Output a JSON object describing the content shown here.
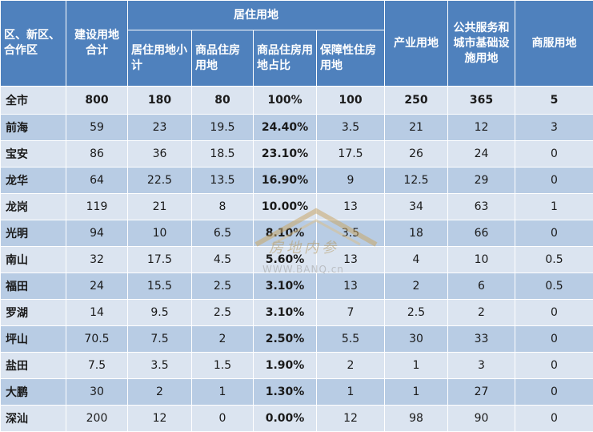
{
  "header": {
    "district": "区、新区、合作区",
    "total_land": "建设用地合计",
    "residential_group": "居住用地",
    "res_subtotal": "居住用地小计",
    "commercial_housing": "商品住房用地",
    "commercial_share": "商品住房用地占比",
    "affordable_housing": "保障性住房用地",
    "industrial": "产业用地",
    "public_service": "公共服务和城市基础设施用地",
    "commercial_office": "商服用地"
  },
  "rows": [
    {
      "name": "全市",
      "total": "800",
      "res": "180",
      "comm": "80",
      "share": "100%",
      "afford": "100",
      "ind": "250",
      "pub": "365",
      "biz": "5"
    },
    {
      "name": "前海",
      "total": "59",
      "res": "23",
      "comm": "19.5",
      "share": "24.40%",
      "afford": "3.5",
      "ind": "21",
      "pub": "12",
      "biz": "3"
    },
    {
      "name": "宝安",
      "total": "86",
      "res": "36",
      "comm": "18.5",
      "share": "23.10%",
      "afford": "17.5",
      "ind": "26",
      "pub": "24",
      "biz": "0"
    },
    {
      "name": "龙华",
      "total": "64",
      "res": "22.5",
      "comm": "13.5",
      "share": "16.90%",
      "afford": "9",
      "ind": "12.5",
      "pub": "29",
      "biz": "0"
    },
    {
      "name": "龙岗",
      "total": "119",
      "res": "21",
      "comm": "8",
      "share": "10.00%",
      "afford": "13",
      "ind": "34",
      "pub": "63",
      "biz": "1"
    },
    {
      "name": "光明",
      "total": "94",
      "res": "10",
      "comm": "6.5",
      "share": "8.10%",
      "afford": "3.5",
      "ind": "18",
      "pub": "66",
      "biz": "0"
    },
    {
      "name": "南山",
      "total": "32",
      "res": "17.5",
      "comm": "4.5",
      "share": "5.60%",
      "afford": "13",
      "ind": "4",
      "pub": "10",
      "biz": "0.5"
    },
    {
      "name": "福田",
      "total": "24",
      "res": "15.5",
      "comm": "2.5",
      "share": "3.10%",
      "afford": "13",
      "ind": "2",
      "pub": "6",
      "biz": "0.5"
    },
    {
      "name": "罗湖",
      "total": "14",
      "res": "9.5",
      "comm": "2.5",
      "share": "3.10%",
      "afford": "7",
      "ind": "2.5",
      "pub": "2",
      "biz": "0"
    },
    {
      "name": "坪山",
      "total": "70.5",
      "res": "7.5",
      "comm": "2",
      "share": "2.50%",
      "afford": "5.5",
      "ind": "30",
      "pub": "33",
      "biz": "0"
    },
    {
      "name": "盐田",
      "total": "7.5",
      "res": "3.5",
      "comm": "1.5",
      "share": "1.90%",
      "afford": "2",
      "ind": "1",
      "pub": "3",
      "biz": "0"
    },
    {
      "name": "大鹏",
      "total": "30",
      "res": "2",
      "comm": "1",
      "share": "1.30%",
      "afford": "1",
      "ind": "1",
      "pub": "27",
      "biz": "0"
    },
    {
      "name": "深汕",
      "total": "200",
      "res": "12",
      "comm": "0",
      "share": "0.00%",
      "afford": "12",
      "ind": "98",
      "pub": "90",
      "biz": "0"
    }
  ],
  "watermark": {
    "text": "房地内参",
    "url": "WWW.BANQ.cn"
  }
}
